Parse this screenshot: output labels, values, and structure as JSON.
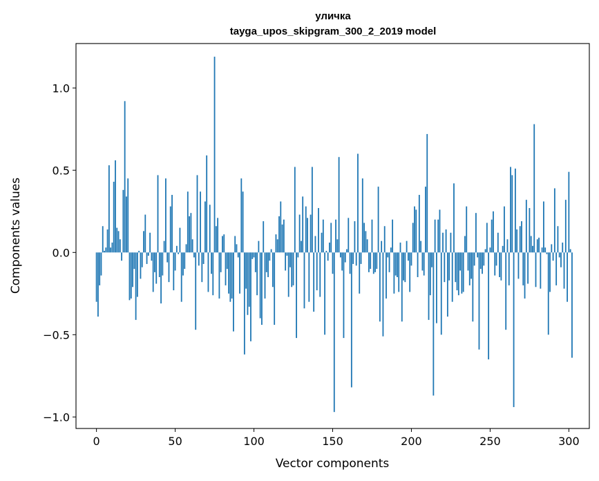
{
  "chart_data": {
    "type": "bar",
    "title": "уличка",
    "subtitle": "tayga_upos_skipgram_300_2_2019 model",
    "xlabel": "Vector components",
    "ylabel": "Components values",
    "xlim": [
      -13,
      313
    ],
    "ylim": [
      -1.07,
      1.27
    ],
    "xticks": [
      0,
      50,
      100,
      150,
      200,
      250,
      300
    ],
    "xtick_labels": [
      "0",
      "50",
      "100",
      "150",
      "200",
      "250",
      "300"
    ],
    "yticks": [
      -1.0,
      -0.5,
      0.0,
      0.5,
      1.0
    ],
    "ytick_labels": [
      "−1.0",
      "−0.5",
      "0.0",
      "0.5",
      "1.0"
    ],
    "grid": false,
    "bar_color": "#1f77b4",
    "values": [
      -0.3,
      -0.39,
      -0.2,
      -0.14,
      0.16,
      0.01,
      0.03,
      0.14,
      0.53,
      0.03,
      0.06,
      0.43,
      0.56,
      0.15,
      0.13,
      0.08,
      -0.05,
      0.38,
      0.92,
      0.34,
      0.45,
      -0.29,
      -0.28,
      -0.21,
      -0.1,
      -0.41,
      -0.27,
      0.01,
      -0.16,
      -0.09,
      0.13,
      0.23,
      -0.07,
      -0.02,
      0.12,
      -0.05,
      -0.24,
      -0.12,
      -0.19,
      0.47,
      -0.15,
      -0.31,
      -0.14,
      0.07,
      0.45,
      -0.06,
      -0.18,
      0.28,
      0.35,
      -0.23,
      -0.11,
      0.04,
      -0.01,
      0.15,
      -0.3,
      -0.14,
      -0.1,
      0.05,
      0.37,
      0.22,
      0.24,
      0.08,
      -0.03,
      -0.47,
      0.47,
      -0.08,
      0.37,
      -0.18,
      -0.07,
      0.31,
      0.59,
      -0.24,
      0.29,
      -0.13,
      -0.26,
      1.19,
      0.16,
      0.21,
      -0.28,
      -0.12,
      0.1,
      0.11,
      -0.2,
      -0.1,
      -0.25,
      -0.3,
      -0.28,
      -0.48,
      0.1,
      0.05,
      -0.03,
      -0.25,
      0.45,
      0.37,
      -0.62,
      -0.22,
      -0.38,
      -0.33,
      -0.54,
      -0.04,
      -0.03,
      -0.12,
      -0.26,
      0.07,
      -0.4,
      -0.44,
      0.19,
      -0.28,
      -0.12,
      -0.15,
      -0.05,
      0.02,
      -0.21,
      -0.44,
      0.11,
      0.08,
      0.22,
      0.31,
      0.17,
      0.2,
      -0.11,
      -0.02,
      -0.27,
      -0.09,
      -0.21,
      -0.2,
      0.52,
      -0.52,
      -0.03,
      0.23,
      0.07,
      0.34,
      -0.34,
      0.28,
      0.21,
      -0.3,
      0.23,
      0.52,
      -0.36,
      0.1,
      -0.23,
      0.27,
      -0.27,
      0.12,
      0.2,
      -0.5,
      0.01,
      -0.05,
      0.06,
      0.18,
      -0.13,
      -0.97,
      0.2,
      0.08,
      0.58,
      -0.03,
      -0.11,
      -0.52,
      -0.06,
      0.02,
      0.21,
      -0.13,
      -0.82,
      -0.07,
      0.19,
      -0.08,
      0.6,
      -0.25,
      -0.07,
      0.45,
      0.18,
      0.13,
      0.08,
      -0.12,
      -0.1,
      0.2,
      -0.13,
      -0.12,
      -0.1,
      0.4,
      -0.42,
      0.07,
      -0.51,
      0.16,
      -0.28,
      -0.03,
      -0.12,
      0.03,
      0.2,
      -0.25,
      -0.14,
      -0.15,
      -0.24,
      0.06,
      -0.42,
      -0.17,
      -0.18,
      0.07,
      -0.05,
      -0.24,
      -0.08,
      0.18,
      0.28,
      0.26,
      -0.15,
      0.35,
      0.07,
      -0.11,
      -0.14,
      0.4,
      0.72,
      -0.41,
      -0.26,
      -0.09,
      -0.87,
      0.2,
      -0.43,
      0.2,
      0.26,
      -0.5,
      0.12,
      -0.18,
      0.14,
      -0.39,
      -0.17,
      0.12,
      -0.3,
      0.42,
      -0.18,
      -0.23,
      -0.26,
      -0.11,
      -0.25,
      -0.24,
      0.1,
      0.28,
      -0.11,
      -0.2,
      -0.16,
      -0.42,
      -0.08,
      0.24,
      -0.03,
      -0.59,
      -0.1,
      -0.13,
      -0.08,
      0.02,
      0.18,
      -0.65,
      0.03,
      0.2,
      0.25,
      -0.14,
      -0.08,
      0.12,
      -0.15,
      -0.17,
      0.04,
      0.28,
      -0.47,
      0.08,
      -0.2,
      0.52,
      0.47,
      -0.94,
      0.51,
      0.14,
      -0.16,
      0.16,
      0.19,
      -0.2,
      -0.28,
      0.32,
      -0.19,
      0.27,
      0.1,
      0.04,
      0.78,
      -0.21,
      0.08,
      0.09,
      -0.22,
      0.03,
      0.31,
      0.03,
      -0.01,
      -0.5,
      -0.24,
      0.05,
      -0.05,
      0.39,
      -0.2,
      0.16,
      -0.03,
      -0.09,
      0.06,
      -0.22,
      0.32,
      -0.3,
      0.49,
      0.02,
      -0.64
    ]
  }
}
